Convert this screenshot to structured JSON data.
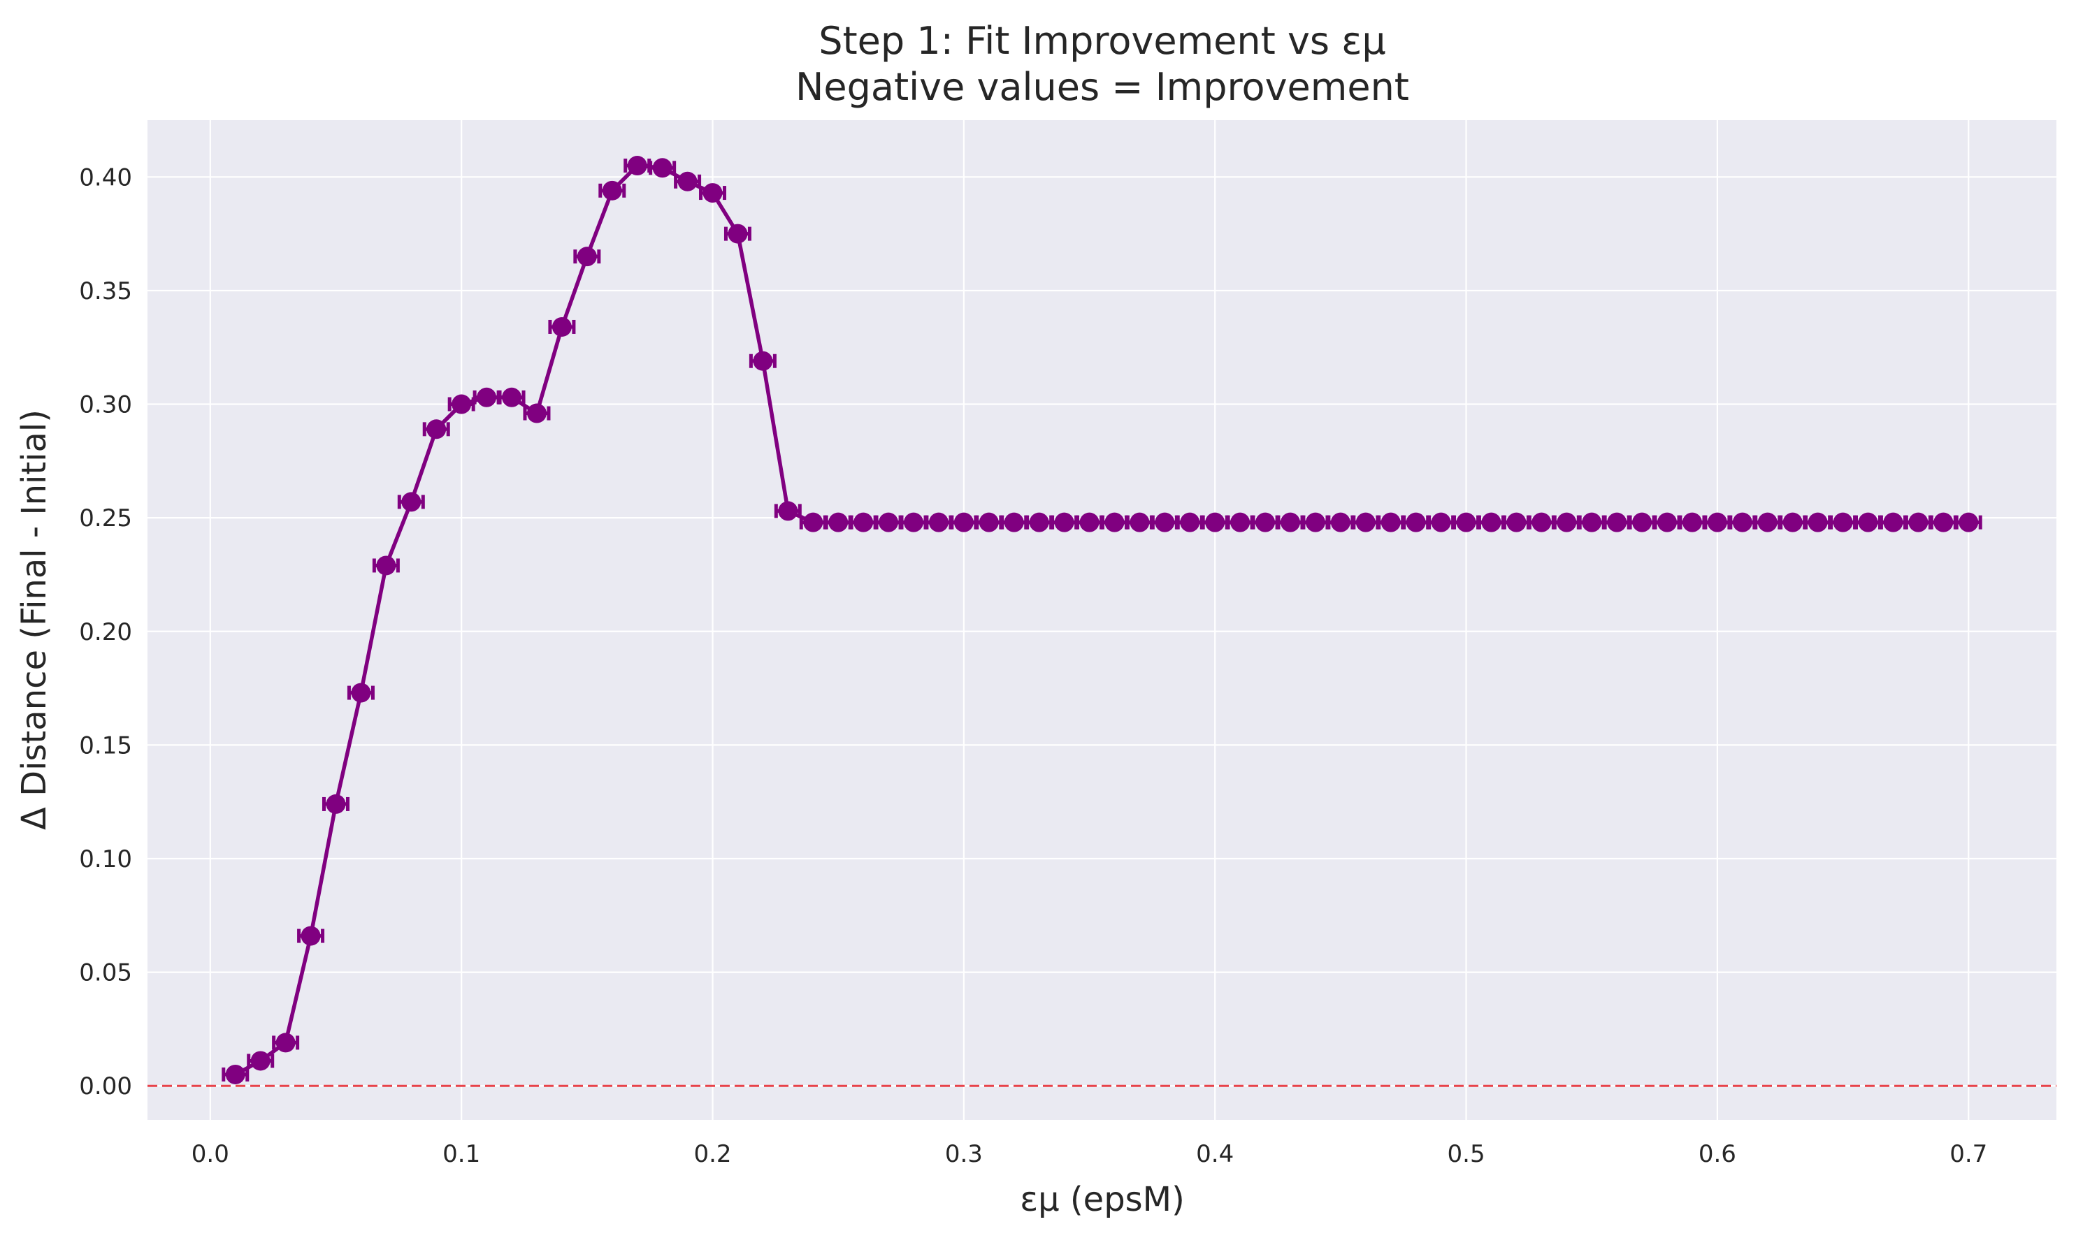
{
  "chart_data": {
    "type": "line",
    "title": "Step 1: Fit Improvement vs εμ",
    "subtitle": "Negative values = Improvement",
    "xlabel": "εμ (epsM)",
    "ylabel": "Δ Distance (Final - Initial)",
    "xlim": [
      -0.025,
      0.735
    ],
    "ylim": [
      -0.015,
      0.425
    ],
    "xticks": [
      0.0,
      0.1,
      0.2,
      0.3,
      0.4,
      0.5,
      0.6,
      0.7
    ],
    "xtick_labels": [
      "0.0",
      "0.1",
      "0.2",
      "0.3",
      "0.4",
      "0.5",
      "0.6",
      "0.7"
    ],
    "yticks": [
      0.0,
      0.05,
      0.1,
      0.15,
      0.2,
      0.25,
      0.3,
      0.35,
      0.4
    ],
    "ytick_labels": [
      "0.00",
      "0.05",
      "0.10",
      "0.15",
      "0.20",
      "0.25",
      "0.30",
      "0.35",
      "0.40"
    ],
    "grid": true,
    "background": "#eaeaf2",
    "grid_color": "#ffffff",
    "reference_line": {
      "y": 0.0,
      "color": "#e8434a",
      "style": "dashed"
    },
    "series": [
      {
        "color": "#800080",
        "marker": "circle-with-errorbar",
        "x": [
          0.01,
          0.02,
          0.03,
          0.04,
          0.05,
          0.06,
          0.07,
          0.08,
          0.09,
          0.1,
          0.11,
          0.12,
          0.13,
          0.14,
          0.15,
          0.16,
          0.17,
          0.18,
          0.19,
          0.2,
          0.21,
          0.22,
          0.23,
          0.24,
          0.25,
          0.26,
          0.27,
          0.28,
          0.29,
          0.3,
          0.31,
          0.32,
          0.33,
          0.34,
          0.35,
          0.36,
          0.37,
          0.38,
          0.39,
          0.4,
          0.41,
          0.42,
          0.43,
          0.44,
          0.45,
          0.46,
          0.47,
          0.48,
          0.49,
          0.5,
          0.51,
          0.52,
          0.53,
          0.54,
          0.55,
          0.56,
          0.57,
          0.58,
          0.59,
          0.6,
          0.61,
          0.62,
          0.63,
          0.64,
          0.65,
          0.66,
          0.67,
          0.68,
          0.69,
          0.7
        ],
        "y": [
          0.005,
          0.011,
          0.019,
          0.066,
          0.124,
          0.173,
          0.229,
          0.257,
          0.289,
          0.3,
          0.303,
          0.303,
          0.296,
          0.334,
          0.365,
          0.394,
          0.405,
          0.404,
          0.398,
          0.393,
          0.375,
          0.319,
          0.253,
          0.248,
          0.248,
          0.248,
          0.248,
          0.248,
          0.248,
          0.248,
          0.248,
          0.248,
          0.248,
          0.248,
          0.248,
          0.248,
          0.248,
          0.248,
          0.248,
          0.248,
          0.248,
          0.248,
          0.248,
          0.248,
          0.248,
          0.248,
          0.248,
          0.248,
          0.248,
          0.248,
          0.248,
          0.248,
          0.248,
          0.248,
          0.248,
          0.248,
          0.248,
          0.248,
          0.248,
          0.248,
          0.248,
          0.248,
          0.248,
          0.248,
          0.248,
          0.248,
          0.248,
          0.248,
          0.248,
          0.248
        ]
      }
    ]
  }
}
